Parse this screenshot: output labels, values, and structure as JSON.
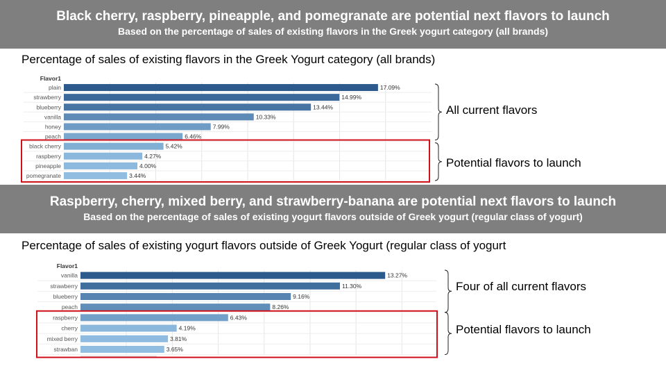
{
  "banner1": {
    "headline": "Black cherry, raspberry, pineapple, and pomegranate are potential next flavors to launch",
    "subheadline": "Based on the percentage of sales of existing flavors in the Greek yogurt category (all brands)"
  },
  "banner2": {
    "headline": "Raspberry, cherry, mixed berry, and strawberry-banana are potential next flavors to launch",
    "subheadline": "Based on the percentage of sales of existing yogurt flavors outside of Greek yogurt (regular class of yogurt)"
  },
  "chart1_side": {
    "current_label": "All current flavors",
    "potential_label": "Potential flavors to launch"
  },
  "chart2_side": {
    "current_label": "Four of all current flavors",
    "potential_label": "Potential flavors to launch"
  },
  "colors": {
    "banner": "#7f7f7f",
    "highlight_box": "#d0101b",
    "bar_dark": "#2c5a8c",
    "bar_light": "#90bde0"
  },
  "chart_data": [
    {
      "type": "bar",
      "orientation": "horizontal",
      "title": "Percentage of sales of existing flavors in the Greek Yogurt category (all brands)",
      "ylabel": "Flavor1",
      "categories": [
        "plain",
        "strawberry",
        "blueberry",
        "vanilla",
        "honey",
        "peach",
        "black cherry",
        "raspberry",
        "pineapple",
        "pomegranate"
      ],
      "values": [
        17.09,
        14.99,
        13.44,
        10.33,
        7.99,
        6.46,
        5.42,
        4.27,
        4.0,
        3.44
      ],
      "data_labels": [
        "17.09%",
        "14.99%",
        "13.44%",
        "10.33%",
        "7.99%",
        "6.46%",
        "5.42%",
        "4.27%",
        "4.00%",
        "3.44%"
      ],
      "xlim": [
        0,
        20
      ],
      "grid": true,
      "highlighted_categories": [
        "black cherry",
        "raspberry",
        "pineapple",
        "pomegranate"
      ]
    },
    {
      "type": "bar",
      "orientation": "horizontal",
      "title": "Percentage of sales of existing yogurt flavors outside of Greek Yogurt (regular class of yogurt",
      "ylabel": "Flavor1",
      "categories": [
        "vanilla",
        "strawberry",
        "blueberry",
        "peach",
        "raspberry",
        "cherry",
        "mixed berry",
        "strawban"
      ],
      "values": [
        13.27,
        11.3,
        9.16,
        8.26,
        6.43,
        4.19,
        3.81,
        3.65
      ],
      "data_labels": [
        "13.27%",
        "11.30%",
        "9.16%",
        "8.26%",
        "6.43%",
        "4.19%",
        "3.81%",
        "3.65%"
      ],
      "xlim": [
        0,
        15.5
      ],
      "grid": true,
      "highlighted_categories": [
        "raspberry",
        "cherry",
        "mixed berry",
        "strawban"
      ]
    }
  ]
}
